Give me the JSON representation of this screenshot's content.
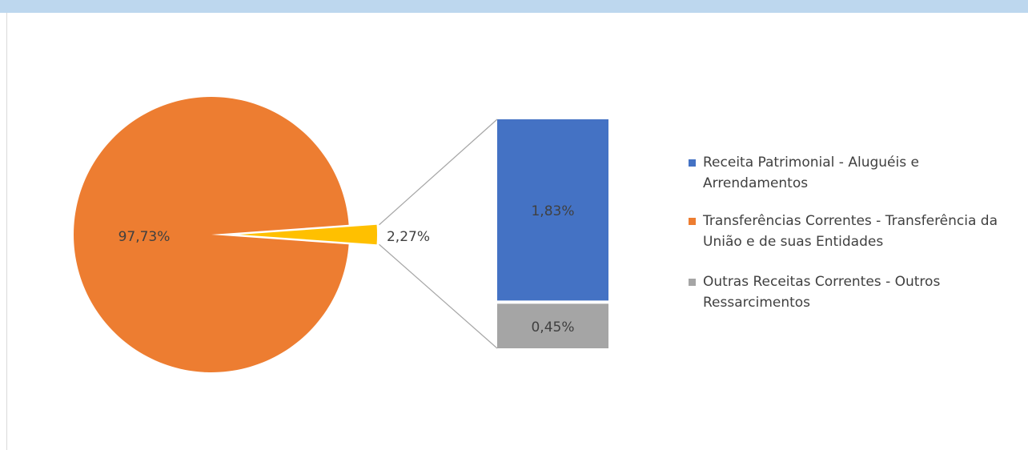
{
  "chart_data": {
    "type": "pie",
    "categories": [
      "Receita Patrimonial - Aluguéis e Arrendamentos",
      "Transferências Correntes - Transferência da União e de suas Entidades",
      "Outras Receitas Correntes - Outros Ressarcimentos"
    ],
    "colors": [
      "#4472c4",
      "#ed7d31",
      "#a5a5a5"
    ],
    "pie": {
      "values": [
        97.73,
        2.27
      ],
      "value_labels": [
        "97,73%",
        "2,27%"
      ],
      "colors": [
        "#ed7d31",
        "#ffc000"
      ]
    },
    "bar": {
      "values": [
        1.83,
        0.45
      ],
      "value_labels": [
        "1,83%",
        "0,45%"
      ],
      "colors": [
        "#4472c4",
        "#a5a5a5"
      ]
    }
  }
}
